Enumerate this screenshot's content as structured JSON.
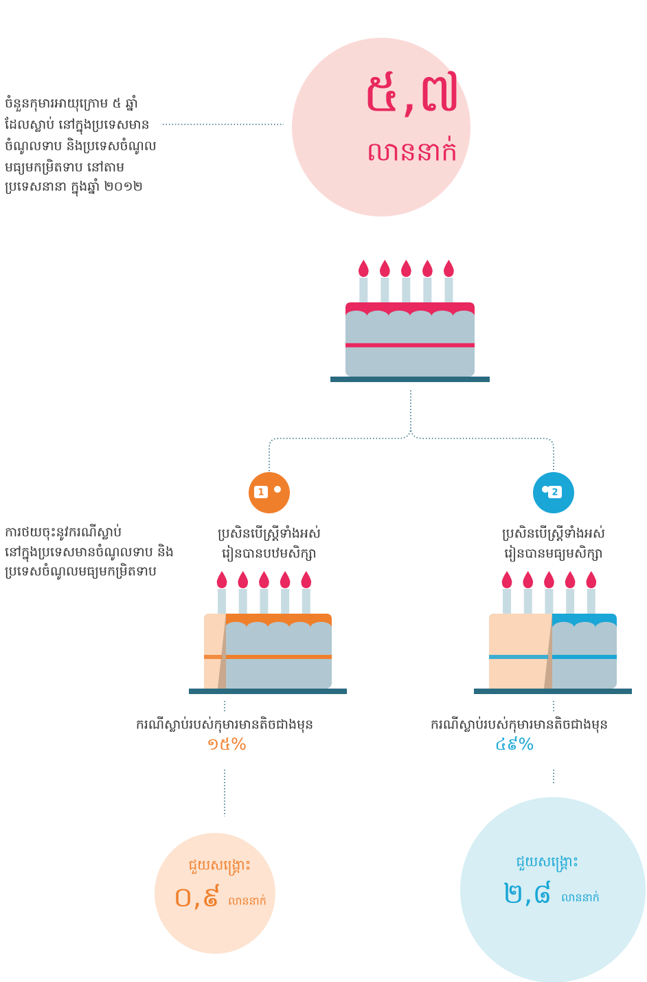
{
  "intro": {
    "lines": [
      "ចំនួនកុមារអាយុក្រោម ៥ ឆ្នាំ",
      "ដែលស្លាប់ នៅក្នុងប្រទេសមាន",
      "ចំណូលទាប និងប្រទេសចំណូល",
      "មធ្យមកម្រិតទាប នៅតាម",
      "ប្រទេសនានា ក្នុងឆ្នាំ ២០១២"
    ]
  },
  "total": {
    "number": "៥,៧",
    "unit": "លាននាក់"
  },
  "reduction": {
    "lines": [
      "ការថយចុះនូវករណីស្លាប់",
      "នៅក្នុងប្រទេសមានចំណូលទាប និង",
      "ប្រទេសចំណូលមធ្យមកម្រិតទាប"
    ]
  },
  "branches": [
    {
      "icon": "1",
      "condition": [
        "ប្រសិនបើស្ត្រីទាំងអស់",
        "រៀនបានបឋមសិក្សា"
      ],
      "result": "ករណីស្លាប់របស់កុមារមានតិចជាងមុន",
      "percent": "១៥%",
      "saved_label": "ជួយសង្គ្រោះ",
      "saved_number": "០,៩",
      "saved_unit": "លាននាក់"
    },
    {
      "icon": "2",
      "condition": [
        "ប្រសិនបើស្ត្រីទាំងអស់",
        "រៀនបានមធ្យមសិក្សា"
      ],
      "result": "ករណីស្លាប់របស់កុមារមានតិចជាងមុន",
      "percent": "៤៩%",
      "saved_label": "ជួយសង្គ្រោះ",
      "saved_number": "២,៨",
      "saved_unit": "លាននាក់"
    }
  ]
}
